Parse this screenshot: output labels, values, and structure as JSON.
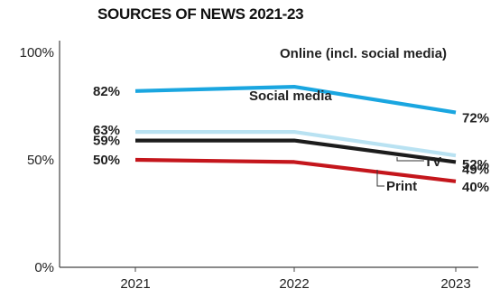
{
  "chart_data": {
    "type": "line",
    "title": "SOURCES OF NEWS 2021-23",
    "categories": [
      "2021",
      "2022",
      "2023"
    ],
    "ylim": [
      0,
      100
    ],
    "y_ticks": [
      "0%",
      "50%",
      "100%"
    ],
    "grid": false,
    "legend": "inline labels",
    "series": [
      {
        "name": "Online (incl. social media)",
        "values": [
          82,
          84,
          72
        ],
        "color": "#1aa6e0",
        "labels": [
          "82%",
          "",
          "72%"
        ]
      },
      {
        "name": "Social media",
        "values": [
          63,
          63,
          52
        ],
        "color": "#b9e2f2",
        "labels": [
          "63%",
          "",
          "52%"
        ]
      },
      {
        "name": "TV",
        "values": [
          59,
          59,
          49
        ],
        "color": "#1c1c1c",
        "labels": [
          "59%",
          "",
          "49%"
        ]
      },
      {
        "name": "Print",
        "values": [
          50,
          49,
          40
        ],
        "color": "#c4161c",
        "labels": [
          "50%",
          "",
          "40%"
        ]
      }
    ]
  }
}
